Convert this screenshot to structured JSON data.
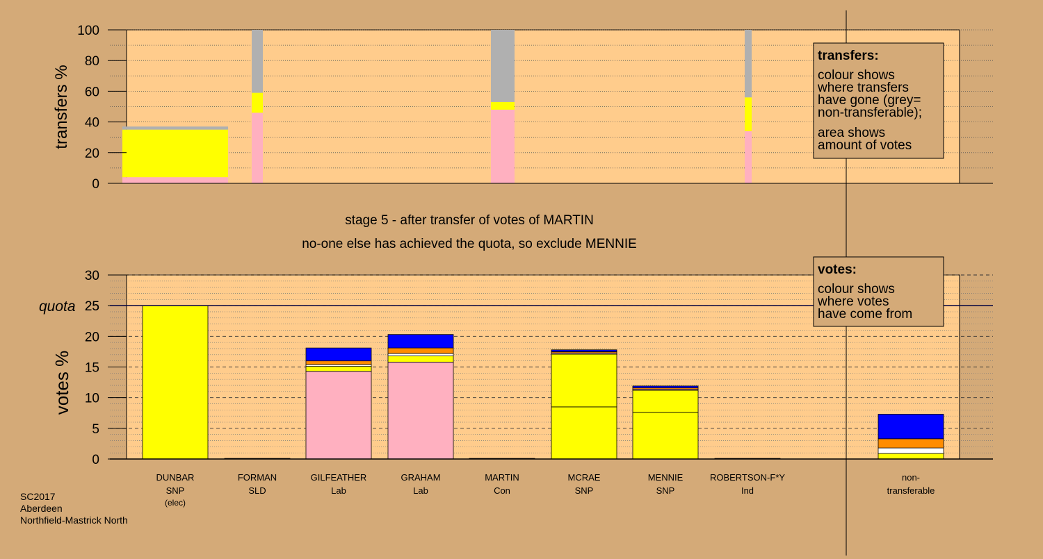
{
  "colors": {
    "background": "#d4aa78",
    "plot_area": "#ffcc8c",
    "snp": "#ffff00",
    "lab": "#ffb0c0",
    "con": "#0000ff",
    "sld": "#ff8c00",
    "ind": "#ffffff",
    "non_transferable": "#b0b0b0",
    "quota_line": "#000040"
  },
  "stage_title": "stage 5 - after transfer of votes of MARTIN",
  "stage_subtitle": "no-one else has achieved the quota, so exclude MENNIE",
  "transfers_legend": {
    "title": "transfers:",
    "lines": [
      "colour shows",
      "where transfers",
      "have gone (grey=",
      "non-transferable);",
      "area shows",
      "amount of votes"
    ]
  },
  "votes_legend": {
    "title": "votes:",
    "lines": [
      "colour shows",
      "where votes",
      "have come from"
    ]
  },
  "footer": [
    "SC2017",
    "Aberdeen",
    "Northfield-Mastrick North"
  ],
  "chart_data": [
    {
      "type": "bar",
      "title": "transfers",
      "ylabel": "transfers %",
      "ylim": [
        0,
        100
      ],
      "yticks": [
        "0",
        "20",
        "40",
        "60",
        "80",
        "100"
      ],
      "grid": "dotted",
      "legend_position": "top-right",
      "bars": [
        {
          "stage": "1",
          "width_fraction": 1.0,
          "segments": [
            {
              "party": "lab",
              "from": 0,
              "to": 4
            },
            {
              "party": "snp",
              "from": 4,
              "to": 35
            },
            {
              "party": "non_transferable",
              "from": 35,
              "to": 37
            }
          ]
        },
        {
          "stage": "2",
          "width_fraction": 0.1,
          "segments": [
            {
              "party": "lab",
              "from": 0,
              "to": 46
            },
            {
              "party": "snp",
              "from": 46,
              "to": 59
            },
            {
              "party": "non_transferable",
              "from": 59,
              "to": 100
            }
          ]
        },
        {
          "stage": "3",
          "width_fraction": 0.21,
          "segments": [
            {
              "party": "lab",
              "from": 0,
              "to": 48
            },
            {
              "party": "snp",
              "from": 48,
              "to": 53
            },
            {
              "party": "non_transferable",
              "from": 53,
              "to": 100
            }
          ]
        },
        {
          "stage": "4",
          "width_fraction": 0.05,
          "segments": [
            {
              "party": "lab",
              "from": 0,
              "to": 34
            },
            {
              "party": "snp",
              "from": 34,
              "to": 56
            },
            {
              "party": "non_transferable",
              "from": 56,
              "to": 100
            }
          ]
        }
      ]
    },
    {
      "type": "bar",
      "title": "votes",
      "ylabel": "votes %",
      "ylim": [
        0,
        30
      ],
      "yticks": [
        "0",
        "5",
        "10",
        "15",
        "20",
        "25",
        "30"
      ],
      "quota": 25,
      "quota_label": "quota",
      "grid": "dashed",
      "legend_position": "top-right",
      "candidates": [
        {
          "name": "DUNBAR",
          "party": "SNP",
          "note": "(elec)",
          "segments": [
            {
              "party": "snp",
              "from": 0,
              "to": 25
            }
          ]
        },
        {
          "name": "FORMAN",
          "party": "SLD",
          "note": "",
          "segments": [
            {
              "party": "sld",
              "from": 0,
              "to": 0.1
            }
          ]
        },
        {
          "name": "GILFEATHER",
          "party": "Lab",
          "note": "",
          "segments": [
            {
              "party": "lab",
              "from": 0,
              "to": 14.3
            },
            {
              "party": "snp",
              "from": 14.3,
              "to": 15.1
            },
            {
              "party": "ind",
              "from": 15.1,
              "to": 15.4
            },
            {
              "party": "sld",
              "from": 15.4,
              "to": 16.0
            },
            {
              "party": "con",
              "from": 16.0,
              "to": 18.1
            }
          ]
        },
        {
          "name": "GRAHAM",
          "party": "Lab",
          "note": "",
          "segments": [
            {
              "party": "lab",
              "from": 0,
              "to": 15.8
            },
            {
              "party": "snp",
              "from": 15.8,
              "to": 16.8
            },
            {
              "party": "ind",
              "from": 16.8,
              "to": 17.2
            },
            {
              "party": "sld",
              "from": 17.2,
              "to": 18.1
            },
            {
              "party": "con",
              "from": 18.1,
              "to": 20.3
            }
          ]
        },
        {
          "name": "MARTIN",
          "party": "Con",
          "note": "",
          "segments": [
            {
              "party": "con",
              "from": 0,
              "to": 0.1
            }
          ]
        },
        {
          "name": "MCRAE",
          "party": "SNP",
          "note": "",
          "segments": [
            {
              "party": "snp",
              "from": 0,
              "to": 8.5
            },
            {
              "party": "snp",
              "from": 8.5,
              "to": 17.1
            },
            {
              "party": "lab",
              "from": 17.1,
              "to": 17.3
            },
            {
              "party": "sld",
              "from": 17.3,
              "to": 17.5
            },
            {
              "party": "con",
              "from": 17.5,
              "to": 17.8
            }
          ]
        },
        {
          "name": "MENNIE",
          "party": "SNP",
          "note": "",
          "segments": [
            {
              "party": "snp",
              "from": 0,
              "to": 7.6
            },
            {
              "party": "snp",
              "from": 7.6,
              "to": 11.2
            },
            {
              "party": "lab",
              "from": 11.2,
              "to": 11.4
            },
            {
              "party": "sld",
              "from": 11.4,
              "to": 11.6
            },
            {
              "party": "con",
              "from": 11.6,
              "to": 11.9
            }
          ]
        },
        {
          "name": "ROBERTSON-F*Y",
          "party": "Ind",
          "note": "",
          "segments": [
            {
              "party": "ind",
              "from": 0,
              "to": 0.1
            }
          ]
        },
        {
          "name": "non-",
          "party": "transferable",
          "note": "",
          "segments": [
            {
              "party": "snp",
              "from": 0,
              "to": 0.9
            },
            {
              "party": "ind",
              "from": 0.9,
              "to": 1.8
            },
            {
              "party": "sld",
              "from": 1.8,
              "to": 3.3
            },
            {
              "party": "con",
              "from": 3.3,
              "to": 7.3
            }
          ]
        }
      ]
    }
  ]
}
